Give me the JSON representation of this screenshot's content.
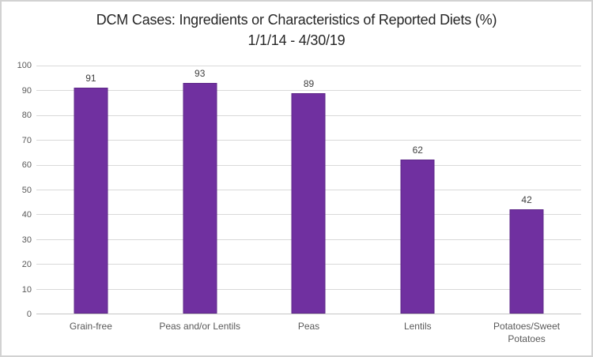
{
  "window": {
    "background": "#ffffff",
    "frame_border_color": "#d2d2d2"
  },
  "chart_data": {
    "type": "bar",
    "title": "DCM Cases: Ingredients or Characteristics of Reported Diets (%)",
    "subtitle": "1/1/14 - 4/30/19",
    "categories": [
      "Grain-free",
      "Peas and/or Lentils",
      "Peas",
      "Lentils",
      "Potatoes/Sweet Potatoes"
    ],
    "values": [
      91,
      93,
      89,
      62,
      42
    ],
    "data_labels": [
      "91",
      "93",
      "89",
      "62",
      "42"
    ],
    "xlabel": "",
    "ylabel": "",
    "ylim": [
      0,
      100
    ],
    "yticks": [
      0,
      10,
      20,
      30,
      40,
      50,
      60,
      70,
      80,
      90,
      100
    ],
    "grid": "horizontal",
    "legend": "none",
    "bar_color": "#7030a0",
    "bar_border_color": "#5e2788",
    "gridline_color": "#d9d9d9",
    "axis_text_color": "#595959",
    "value_label_color": "#404040",
    "title_color": "#262626"
  }
}
